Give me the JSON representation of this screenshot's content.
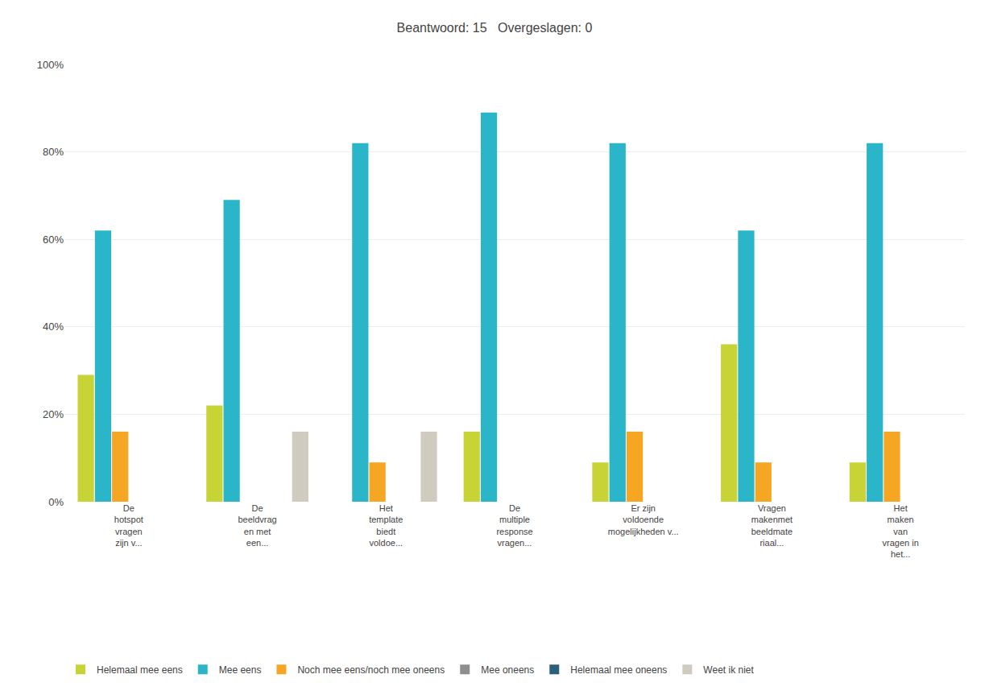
{
  "chart_data": {
    "type": "bar",
    "title": "Beantwoord: 15   Overgeslagen: 0",
    "categories": [
      "De\nhotspot\nvragen\nzijn v...",
      "De\nbeeldvrag\nen met\neen...",
      "Het\ntemplate\nbiedt\nvoldoe...",
      "De\nmultiple\nresponse\nvragen...",
      "Er zijn\nvoldoende\nmogelijkheden v...",
      "Vragen\nmakenmet\nbeeldmate\nriaal...",
      "Het\nmaken\nvan\nvragen in\nhet..."
    ],
    "series": [
      {
        "name": "Helemaal mee eens",
        "color": "#c8d435",
        "values": [
          29,
          22,
          0,
          16,
          9,
          36,
          9
        ]
      },
      {
        "name": "Mee eens",
        "color": "#2bb5c8",
        "values": [
          62,
          69,
          82,
          89,
          82,
          62,
          82
        ]
      },
      {
        "name": "Noch mee eens/noch mee oneens",
        "color": "#f5a623",
        "values": [
          16,
          0,
          9,
          0,
          16,
          9,
          16
        ]
      },
      {
        "name": "Mee oneens",
        "color": "#8e8e8e",
        "values": [
          0,
          0,
          0,
          0,
          0,
          0,
          0
        ]
      },
      {
        "name": "Helemaal mee oneens",
        "color": "#2a6079",
        "values": [
          0,
          0,
          0,
          0,
          0,
          0,
          0
        ]
      },
      {
        "name": "Weet ik niet",
        "color": "#d0cbbf",
        "values": [
          0,
          16,
          16,
          0,
          0,
          0,
          0
        ]
      }
    ],
    "ylim": [
      0,
      100
    ],
    "yticks": [
      {
        "value": 0,
        "label": "0%"
      },
      {
        "value": 20,
        "label": "20%"
      },
      {
        "value": 40,
        "label": "40%"
      },
      {
        "value": 60,
        "label": "60%"
      },
      {
        "value": 80,
        "label": "80%"
      },
      {
        "value": 100,
        "label": "100%"
      }
    ],
    "grid": true,
    "legend": "bottom"
  }
}
